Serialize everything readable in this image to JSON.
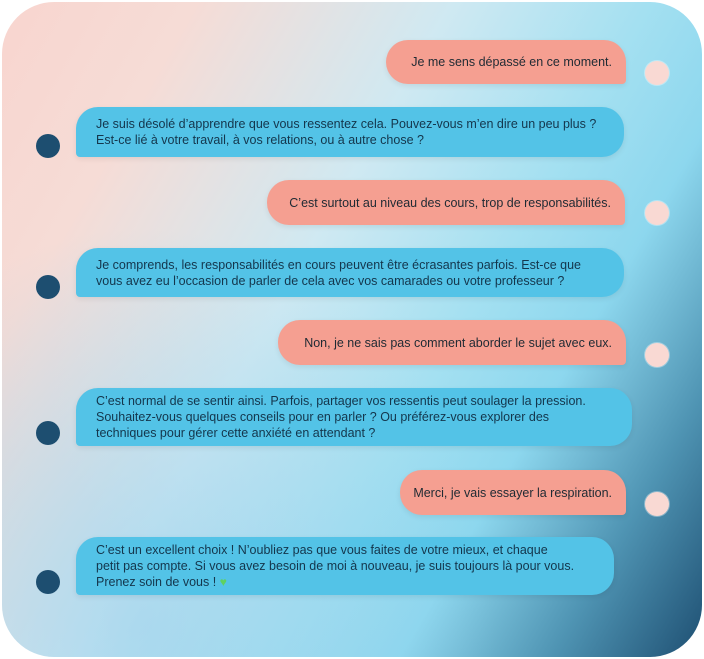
{
  "conversation": {
    "messages": [
      {
        "role": "user",
        "text": "Je me sens dépassé en ce moment."
      },
      {
        "role": "bot",
        "lines": [
          "Je suis désolé d’apprendre que vous ressentez cela. Pouvez-vous m’en dire un peu plus ?",
          "Est-ce lié à votre travail, à vos relations, ou à autre chose ?"
        ]
      },
      {
        "role": "user",
        "text": "C’est surtout au niveau des cours, trop de responsabilités."
      },
      {
        "role": "bot",
        "lines": [
          "Je comprends, les responsabilités en cours peuvent être écrasantes parfois. Est-ce que",
          "vous avez eu l’occasion de parler de cela avec vos camarades ou votre professeur ?"
        ]
      },
      {
        "role": "user",
        "text": "Non, je ne sais pas comment aborder le sujet avec eux."
      },
      {
        "role": "bot",
        "lines": [
          "C’est normal de se sentir ainsi. Parfois, partager vos ressentis peut soulager la pression.",
          "Souhaitez-vous quelques conseils pour en parler ? Ou préférez-vous explorer des",
          "techniques pour gérer cette anxiété en attendant ?"
        ]
      },
      {
        "role": "user",
        "text": "Merci, je vais essayer la respiration."
      },
      {
        "role": "bot",
        "lines": [
          "C’est un excellent choix ! N’oubliez pas que vous faites de votre mieux, et chaque",
          "petit pas compte. Si vous avez besoin de moi à nouveau, je suis toujours là pour vous.",
          "Prenez soin de vous !"
        ],
        "emoji": "♥"
      }
    ]
  },
  "colors": {
    "user_bubble": "#f59f91",
    "bot_bubble": "#53c3e7",
    "user_avatar": "#f9d9d3",
    "bot_avatar": "#1d4e70"
  }
}
